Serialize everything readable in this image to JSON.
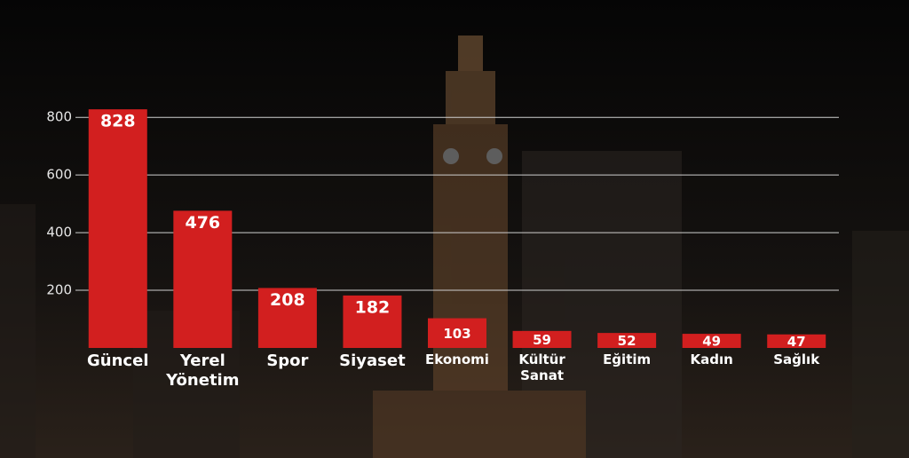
{
  "chart_data": {
    "type": "bar",
    "categories": [
      "Güncel",
      "Yerel Yönetim",
      "Spor",
      "Siyaset",
      "Ekonomi",
      "Kültür Sanat",
      "Eğitim",
      "Kadın",
      "Sağlık"
    ],
    "values": [
      828,
      476,
      208,
      182,
      103,
      59,
      52,
      49,
      47
    ],
    "color": "#d21f1f",
    "ylim": [
      0,
      850
    ],
    "yticks": [
      200,
      400,
      600,
      800
    ],
    "grid": true
  }
}
